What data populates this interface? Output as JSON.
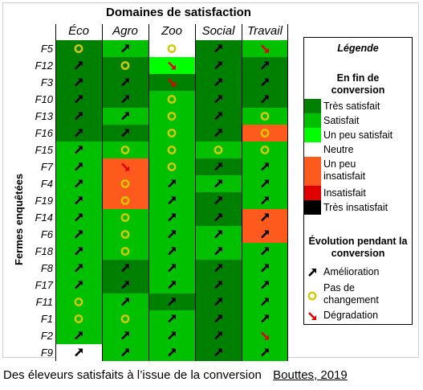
{
  "chart_data": {
    "type": "heatmap",
    "title": "Domaines de satisfaction",
    "ylabel": "Fermes enquêtées",
    "columns": [
      "Éco",
      "Agro",
      "Zoo",
      "Social",
      "Travail"
    ],
    "rows": [
      "F5",
      "F12",
      "F3",
      "F10",
      "F13",
      "F16",
      "F15",
      "F7",
      "F4",
      "F19",
      "F14",
      "F6",
      "F18",
      "F8",
      "F17",
      "F11",
      "F1",
      "F2",
      "F9"
    ],
    "satisfaction": [
      [
        "Très satisfait",
        "Satisfait",
        "Neutre",
        "Très satisfait",
        "Satisfait"
      ],
      [
        "Très satisfait",
        "Très satisfait",
        "Un peu satisfait",
        "Très satisfait",
        "Très satisfait"
      ],
      [
        "Très satisfait",
        "Très satisfait",
        "Très satisfait",
        "Très satisfait",
        "Très satisfait"
      ],
      [
        "Très satisfait",
        "Très satisfait",
        "Satisfait",
        "Très satisfait",
        "Très satisfait"
      ],
      [
        "Très satisfait",
        "Satisfait",
        "Satisfait",
        "Très satisfait",
        "Satisfait"
      ],
      [
        "Très satisfait",
        "Très satisfait",
        "Satisfait",
        "Très satisfait",
        "Un peu insatisfait"
      ],
      [
        "Satisfait",
        "Satisfait",
        "Satisfait",
        "Satisfait",
        "Satisfait"
      ],
      [
        "Satisfait",
        "Un peu insatisfait",
        "Satisfait",
        "Très satisfait",
        "Satisfait"
      ],
      [
        "Satisfait",
        "Un peu insatisfait",
        "Satisfait",
        "Satisfait",
        "Satisfait"
      ],
      [
        "Satisfait",
        "Un peu insatisfait",
        "Satisfait",
        "Très satisfait",
        "Satisfait"
      ],
      [
        "Satisfait",
        "Satisfait",
        "Satisfait",
        "Très satisfait",
        "Un peu insatisfait"
      ],
      [
        "Satisfait",
        "Satisfait",
        "Satisfait",
        "Satisfait",
        "Un peu insatisfait"
      ],
      [
        "Satisfait",
        "Satisfait",
        "Satisfait",
        "Satisfait",
        "Satisfait"
      ],
      [
        "Satisfait",
        "Très satisfait",
        "Satisfait",
        "Très satisfait",
        "Satisfait"
      ],
      [
        "Satisfait",
        "Très satisfait",
        "Satisfait",
        "Très satisfait",
        "Satisfait"
      ],
      [
        "Satisfait",
        "Satisfait",
        "Très satisfait",
        "Très satisfait",
        "Satisfait"
      ],
      [
        "Satisfait",
        "Satisfait",
        "Satisfait",
        "Très satisfait",
        "Satisfait"
      ],
      [
        "Satisfait",
        "Satisfait",
        "Satisfait",
        "Très satisfait",
        "Satisfait"
      ],
      [
        "Neutre",
        "Satisfait",
        "Satisfait",
        "Très satisfait",
        "Satisfait"
      ]
    ],
    "evolution": [
      [
        "Pas de changement",
        "Amélioration",
        "Pas de changement",
        "Amélioration",
        "Dégradation"
      ],
      [
        "Amélioration",
        "Pas de changement",
        "Dégradation",
        "Amélioration",
        "Amélioration"
      ],
      [
        "Amélioration",
        "Amélioration",
        "Dégradation",
        "Amélioration",
        "Amélioration"
      ],
      [
        "Amélioration",
        "Amélioration",
        "Pas de changement",
        "Amélioration",
        "Amélioration"
      ],
      [
        "Amélioration",
        "Amélioration",
        "Pas de changement",
        "Amélioration",
        "Pas de changement"
      ],
      [
        "Amélioration",
        "Amélioration",
        "Pas de changement",
        "Amélioration",
        "Pas de changement"
      ],
      [
        "Amélioration",
        "Pas de changement",
        "Pas de changement",
        "Pas de changement",
        "Pas de changement"
      ],
      [
        "Amélioration",
        "Dégradation",
        "Pas de changement",
        "Amélioration",
        "Amélioration"
      ],
      [
        "Amélioration",
        "Pas de changement",
        "Amélioration",
        "Amélioration",
        "Amélioration"
      ],
      [
        "Amélioration",
        "Pas de changement",
        "Amélioration",
        "Amélioration",
        "Amélioration"
      ],
      [
        "Amélioration",
        "Pas de changement",
        "Amélioration",
        "Amélioration",
        "Amélioration"
      ],
      [
        "Amélioration",
        "Pas de changement",
        "Amélioration",
        "Amélioration",
        "Amélioration"
      ],
      [
        "Amélioration",
        "Pas de changement",
        "Amélioration",
        "Amélioration",
        "Amélioration"
      ],
      [
        "Amélioration",
        "Amélioration",
        "Amélioration",
        "Amélioration",
        "Amélioration"
      ],
      [
        "Amélioration",
        "Amélioration",
        "Amélioration",
        "Amélioration",
        "Amélioration"
      ],
      [
        "Pas de changement",
        "Amélioration",
        "Amélioration",
        "Amélioration",
        "Amélioration"
      ],
      [
        "Pas de changement",
        "Pas de changement",
        "Amélioration",
        "Amélioration",
        "Amélioration"
      ],
      [
        "Amélioration",
        "Amélioration",
        "Amélioration",
        "Amélioration",
        "Dégradation"
      ],
      [
        "Amélioration",
        "Amélioration",
        "Amélioration",
        "Amélioration",
        "Amélioration"
      ]
    ],
    "colors": {
      "Très satisfait": "#008000",
      "Satisfait": "#00c000",
      "Un peu satisfait": "#00ff00",
      "Neutre": "#ffffff",
      "Un peu insatisfait": "#ff5a1e",
      "Insatisfait": "#e00000",
      "Très insatisfait": "#000000"
    },
    "symbol_colors": {
      "Amélioration": "#000000",
      "Pas de changement": "#d8c800",
      "Dégradation": "#e00000"
    }
  },
  "legend": {
    "title": "Légende",
    "state_header": "En fin de conversion",
    "levels": [
      "Très satisfait",
      "Satisfait",
      "Un peu satisfait",
      "Neutre",
      "Un peu insatisfait",
      "Insatisfait",
      "Très insatisfait"
    ],
    "evolution_header": "Évolution pendant la conversion",
    "evolution": [
      "Amélioration",
      "Pas de changement",
      "Dégradation"
    ]
  },
  "caption": {
    "text": "Des éleveurs satisfaits à l’issue de la conversion",
    "source": "Bouttes, 2019"
  }
}
